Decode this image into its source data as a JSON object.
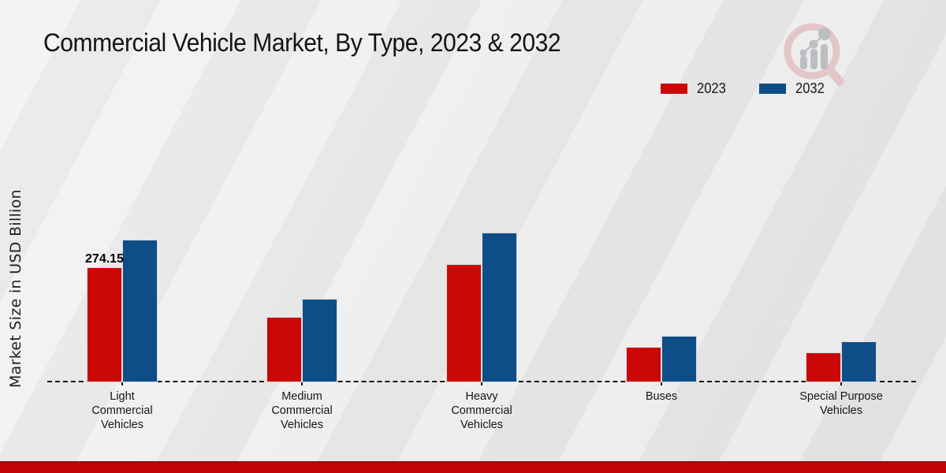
{
  "page": {
    "title": "Commercial Vehicle Market, By Type, 2023 & 2032"
  },
  "ylabel": "Market Size in USD Billion",
  "legend": {
    "items": [
      {
        "label": "2023",
        "color": "#cb0707"
      },
      {
        "label": "2032",
        "color": "#0f4d88"
      }
    ]
  },
  "chart_data": {
    "type": "bar",
    "title": "Commercial Vehicle Market, By Type, 2023 & 2032",
    "xlabel": "",
    "ylabel": "Market Size in USD Billion",
    "categories": [
      "Light Commercial Vehicles",
      "Medium Commercial Vehicles",
      "Heavy Commercial Vehicles",
      "Buses",
      "Special Purpose Vehicles"
    ],
    "series": [
      {
        "name": "2023",
        "color": "#cb0707",
        "values": [
          274.15,
          156,
          281,
          85,
          71
        ]
      },
      {
        "name": "2032",
        "color": "#0f4d88",
        "values": [
          340,
          199,
          357,
          111,
          98
        ]
      }
    ],
    "ylim": [
      0,
      420
    ],
    "grid": false,
    "y_axis_ticks_visible": false,
    "baseline_style": "dashed",
    "legend_position": "top-right",
    "annotations": [
      {
        "series": "2023",
        "category": "Light Commercial Vehicles",
        "text": "274.15"
      }
    ]
  }
}
